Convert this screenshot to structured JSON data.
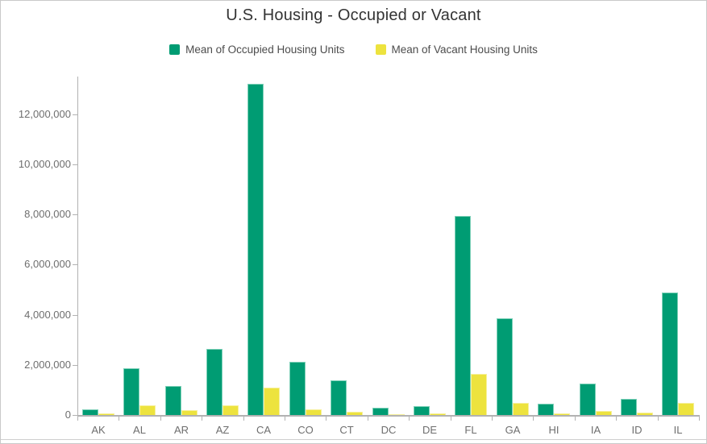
{
  "title": "U.S. Housing - Occupied or Vacant",
  "legend": [
    {
      "label": "Mean of Occupied Housing Units",
      "color": "#009C73"
    },
    {
      "label": "Mean of Vacant Housing Units",
      "color": "#EDE33E"
    }
  ],
  "chart_data": {
    "type": "bar",
    "title": "U.S. Housing - Occupied or Vacant",
    "categories": [
      "AK",
      "AL",
      "AR",
      "AZ",
      "CA",
      "CO",
      "CT",
      "DC",
      "DE",
      "FL",
      "GA",
      "HI",
      "IA",
      "ID",
      "IL"
    ],
    "series": [
      {
        "name": "Mean of Occupied Housing Units",
        "color": "#009C73",
        "edge_color": "#7ED0B8",
        "values": [
          220000,
          1880000,
          1160000,
          2640000,
          13200000,
          2110000,
          1380000,
          280000,
          350000,
          7950000,
          3850000,
          440000,
          1260000,
          650000,
          4900000
        ]
      },
      {
        "name": "Mean of Vacant Housing Units",
        "color": "#EDE33E",
        "edge_color": "#F6F09B",
        "values": [
          55000,
          370000,
          200000,
          380000,
          1100000,
          215000,
          125000,
          30000,
          65000,
          1630000,
          490000,
          80000,
          145000,
          95000,
          480000
        ]
      }
    ],
    "xlabel": "",
    "ylabel": "",
    "ylim": [
      0,
      13500000
    ],
    "yticks": [
      0,
      2000000,
      4000000,
      6000000,
      8000000,
      10000000,
      12000000
    ],
    "ytick_labels": [
      "0",
      "2,000,000",
      "4,000,000",
      "6,000,000",
      "8,000,000",
      "10,000,000",
      "12,000,000"
    ],
    "grid": false,
    "legend_position": "top"
  }
}
